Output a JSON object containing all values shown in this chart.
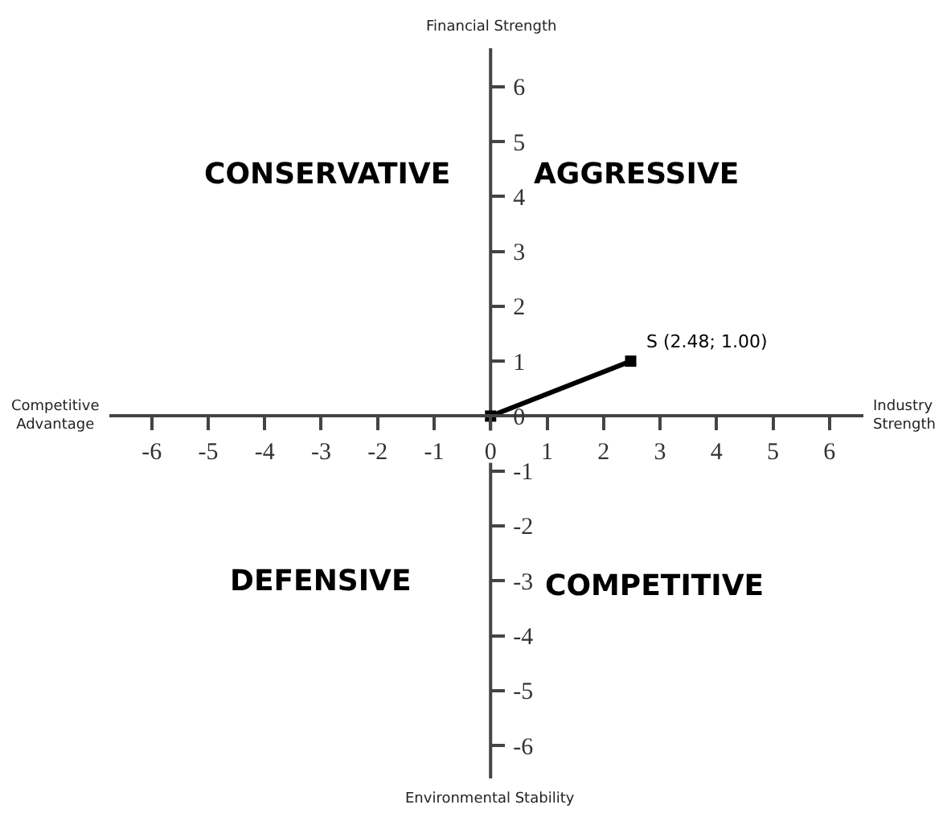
{
  "chart_data": {
    "type": "line",
    "xlabel": "Industry Strength",
    "ylabel": "Financial Strength",
    "x": [
      0,
      2.48
    ],
    "series": [
      {
        "color": "#000000",
        "values": [
          0,
          1.0
        ]
      }
    ],
    "marker": "square",
    "grid": false,
    "xlim": [
      -6.75,
      6.6
    ],
    "ylim": [
      -6.6,
      6.7
    ],
    "xticks": [
      -6,
      -5,
      -4,
      -3,
      -2,
      -1,
      0,
      1,
      2,
      3,
      4,
      5,
      6
    ],
    "yticks": [
      -6,
      -5,
      -4,
      -3,
      -2,
      -1,
      0,
      1,
      2,
      3,
      4,
      5,
      6
    ],
    "annotations": [
      "CONSERVATIVE",
      "AGGRESSIVE",
      "DEFENSIVE",
      "COMPETITIVE",
      "Competitive Advantage",
      "Environmental Stability",
      {
        "text": "S (2.48; 1.00)",
        "x": 2.48,
        "y": 1.0
      }
    ]
  }
}
